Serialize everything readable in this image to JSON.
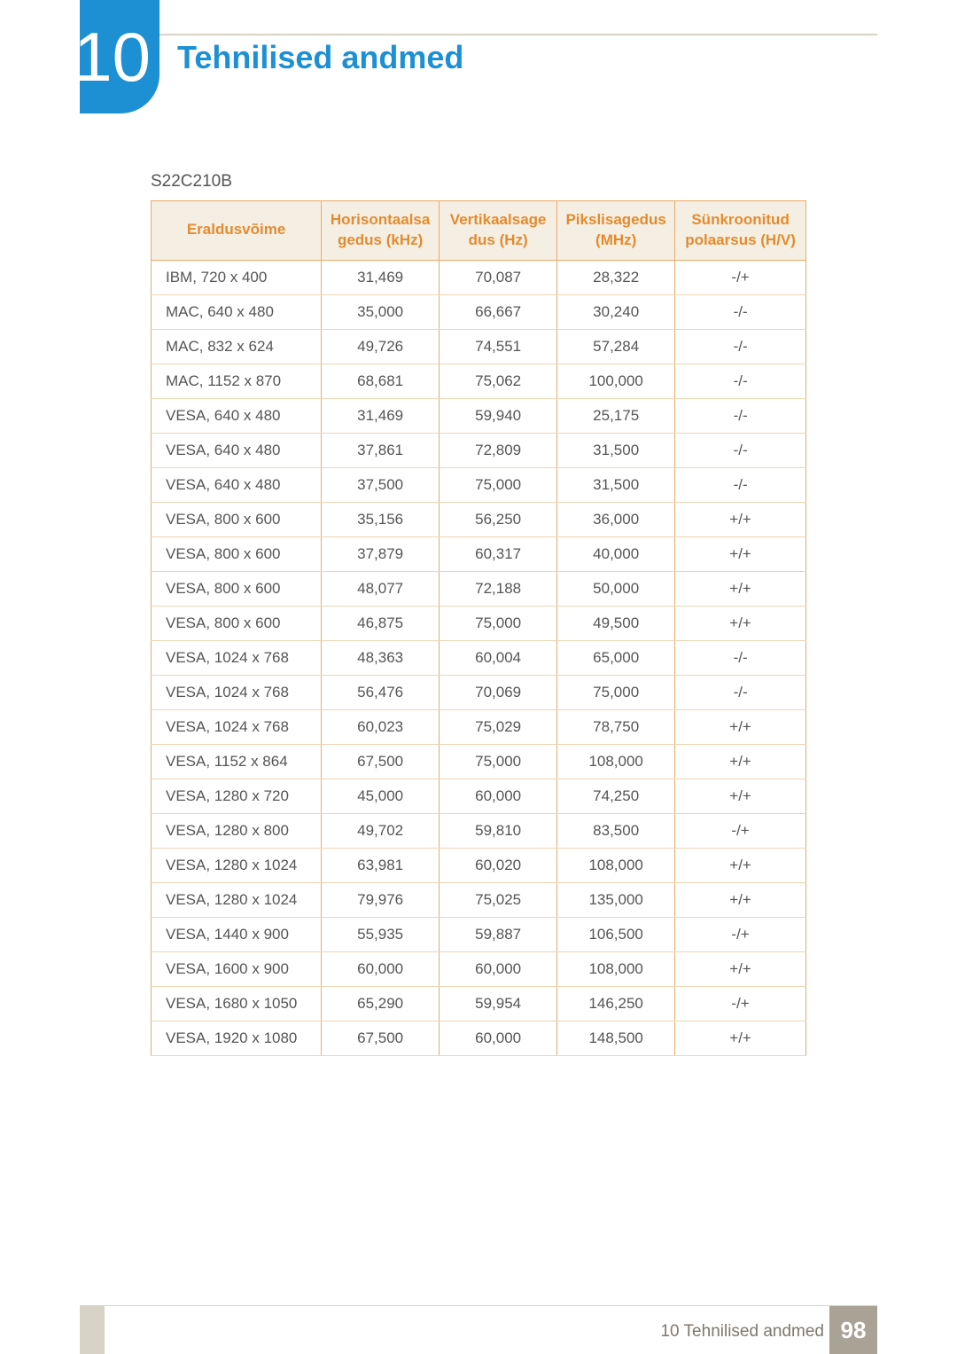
{
  "chapter_number": "10",
  "page_title": "Tehnilised andmed",
  "model": "S22C210B",
  "table": {
    "headers": [
      "Eraldusvõime",
      "Horisontaalsa\ngedus (kHz)",
      "Vertikaalsage\ndus (Hz)",
      "Pikslisagedus\n(MHz)",
      "Sünkroonitud\npolaarsus (H/V)"
    ],
    "rows": [
      [
        "IBM, 720 x 400",
        "31,469",
        "70,087",
        "28,322",
        "-/+"
      ],
      [
        "MAC, 640 x 480",
        "35,000",
        "66,667",
        "30,240",
        "-/-"
      ],
      [
        "MAC, 832 x 624",
        "49,726",
        "74,551",
        "57,284",
        "-/-"
      ],
      [
        "MAC, 1152 x 870",
        "68,681",
        "75,062",
        "100,000",
        "-/-"
      ],
      [
        "VESA, 640 x 480",
        "31,469",
        "59,940",
        "25,175",
        "-/-"
      ],
      [
        "VESA, 640 x 480",
        "37,861",
        "72,809",
        "31,500",
        "-/-"
      ],
      [
        "VESA, 640 x 480",
        "37,500",
        "75,000",
        "31,500",
        "-/-"
      ],
      [
        "VESA, 800 x 600",
        "35,156",
        "56,250",
        "36,000",
        "+/+"
      ],
      [
        "VESA, 800 x 600",
        "37,879",
        "60,317",
        "40,000",
        "+/+"
      ],
      [
        "VESA, 800 x 600",
        "48,077",
        "72,188",
        "50,000",
        "+/+"
      ],
      [
        "VESA, 800 x 600",
        "46,875",
        "75,000",
        "49,500",
        "+/+"
      ],
      [
        "VESA, 1024 x 768",
        "48,363",
        "60,004",
        "65,000",
        "-/-"
      ],
      [
        "VESA, 1024 x 768",
        "56,476",
        "70,069",
        "75,000",
        "-/-"
      ],
      [
        "VESA, 1024 x 768",
        "60,023",
        "75,029",
        "78,750",
        "+/+"
      ],
      [
        "VESA, 1152 x 864",
        "67,500",
        "75,000",
        "108,000",
        "+/+"
      ],
      [
        "VESA, 1280 x 720",
        "45,000",
        "60,000",
        "74,250",
        "+/+"
      ],
      [
        "VESA, 1280 x 800",
        "49,702",
        "59,810",
        "83,500",
        "-/+"
      ],
      [
        "VESA, 1280 x 1024",
        "63,981",
        "60,020",
        "108,000",
        "+/+"
      ],
      [
        "VESA, 1280 x 1024",
        "79,976",
        "75,025",
        "135,000",
        "+/+"
      ],
      [
        "VESA, 1440 x 900",
        "55,935",
        "59,887",
        "106,500",
        "-/+"
      ],
      [
        "VESA, 1600 x 900",
        "60,000",
        "60,000",
        "108,000",
        "+/+"
      ],
      [
        "VESA, 1680 x 1050",
        "65,290",
        "59,954",
        "146,250",
        "-/+"
      ],
      [
        "VESA, 1920 x 1080",
        "67,500",
        "60,000",
        "148,500",
        "+/+"
      ]
    ]
  },
  "footer": {
    "label": "10 Tehnilised andmed",
    "page_number": "98"
  },
  "colors": {
    "accent_blue": "#1d90d4",
    "header_text": "#e38b2f",
    "header_bg": "#f5efe3",
    "border_strong": "#e9a96b",
    "border_light": "#f0d5b3",
    "rule": "#d9d2c6",
    "footer_block": "#aaa295",
    "body_text": "#555555"
  }
}
